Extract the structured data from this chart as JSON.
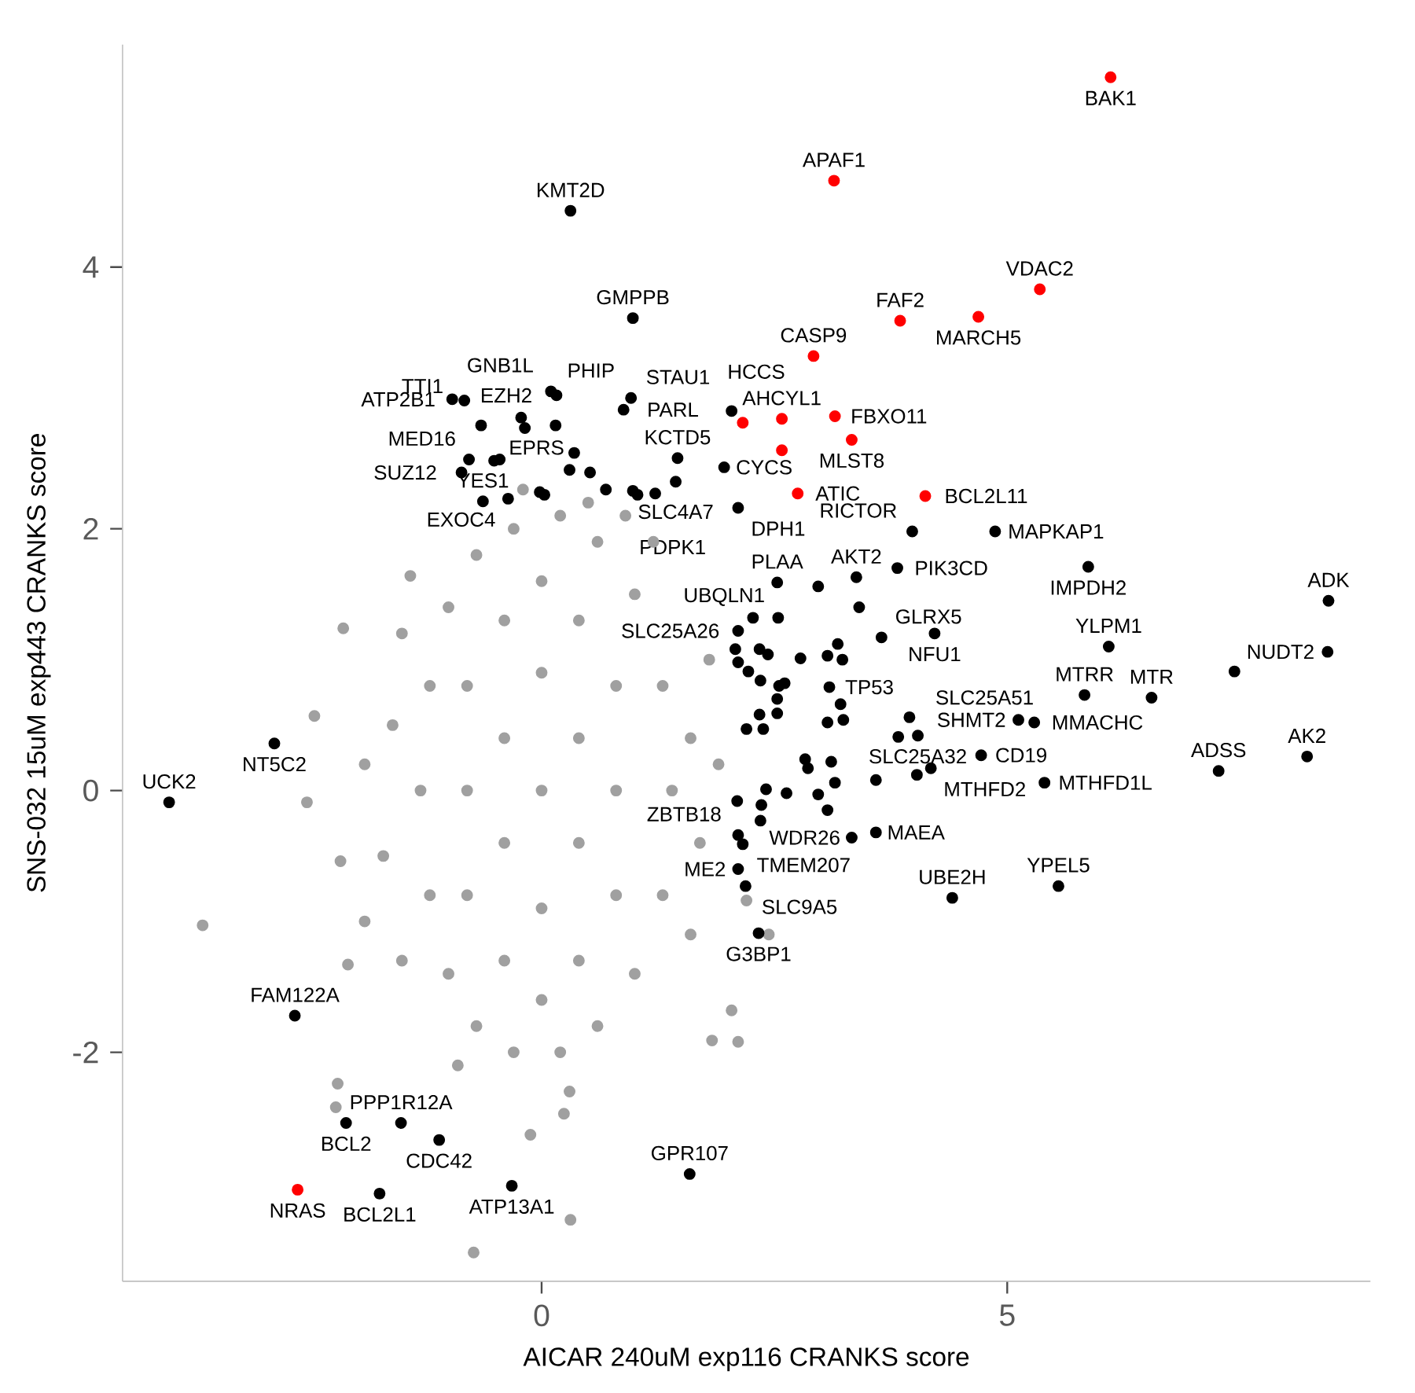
{
  "chart_data": {
    "type": "scatter",
    "xlabel": "AICAR 240uM exp116 CRANKS score",
    "ylabel": "SNS-032 15uM exp443 CRANKS score",
    "xlim": [
      -4.5,
      8.9
    ],
    "ylim": [
      -3.75,
      5.7
    ],
    "xticks": [
      0,
      5
    ],
    "yticks": [
      -2,
      0,
      2,
      4
    ],
    "grid": false,
    "series": [
      {
        "color": "#a0a0a0",
        "x": [
          -1.3,
          -1.2,
          -1.2,
          -1.0,
          -1.0,
          -0.7,
          -0.7,
          -0.3,
          -0.3,
          0.2,
          0.2,
          0.6,
          0.6,
          1.0,
          1.0,
          1.3,
          1.3,
          1.4,
          -0.8,
          -0.8,
          -0.8,
          -0.4,
          -0.4,
          -0.4,
          -0.4,
          0,
          0,
          0,
          0,
          0,
          0.4,
          0.4,
          0.4,
          0.4,
          0.8,
          0.8,
          0.8,
          -1.6,
          -1.7,
          -1.5,
          -1.5,
          1.6,
          1.7,
          1.8,
          1.6,
          0.9,
          -0.9,
          0.3,
          -0.2,
          1.2,
          1.9,
          -1.9,
          -1.9,
          -3.64,
          -0.73,
          0.31,
          -2.13,
          -2.44,
          2.04,
          2.11,
          1.83,
          0.24,
          -0.12,
          -2.21,
          -2.19,
          -2.16,
          -2.52,
          -2.08,
          0.5,
          -1.41,
          2.44,
          2.2
        ],
        "values": [
          0,
          0.8,
          -0.8,
          1.4,
          -1.4,
          1.8,
          -1.8,
          2.0,
          -2.0,
          2.1,
          -2.0,
          1.9,
          -1.8,
          1.5,
          -1.4,
          0.8,
          -0.8,
          0,
          0,
          0.8,
          -0.8,
          1.3,
          -1.3,
          0.4,
          -0.4,
          0,
          0.9,
          -0.9,
          1.6,
          -1.6,
          0.4,
          -0.4,
          1.3,
          -1.3,
          0,
          0.8,
          -0.8,
          0.5,
          -0.5,
          1.2,
          -1.3,
          0.4,
          -0.4,
          1.0,
          -1.1,
          2.1,
          -2.1,
          -2.3,
          2.3,
          1.9,
          0.2,
          -1.0,
          0.2,
          -1.03,
          -3.53,
          -3.28,
          1.24,
          0.57,
          -1.68,
          -1.92,
          -1.91,
          -2.47,
          -2.63,
          -2.42,
          -2.24,
          -0.54,
          -0.09,
          -1.33,
          2.2,
          1.64,
          -1.1,
          -0.84
        ]
      },
      {
        "color": "#000000",
        "x": [
          0.31,
          0.98,
          0.1,
          0.16,
          0.96,
          0.88,
          -0.96,
          -0.83,
          -0.22,
          -0.18,
          -0.65,
          0.15,
          0.35,
          2.04,
          1.46,
          1.44,
          -0.78,
          -0.51,
          -0.45,
          -0.86,
          0.3,
          0.52,
          0.03,
          -0.02,
          0.69,
          0.98,
          1.22,
          1.03,
          1.96,
          -0.63,
          -0.36,
          2.11,
          3.98,
          4.87,
          5.87,
          3.38,
          3.82,
          2.53,
          2.97,
          3.41,
          2.54,
          2.27,
          2.11,
          8.45,
          8.44,
          4.22,
          3.65,
          6.09,
          7.44,
          5.83,
          6.55,
          3.09,
          5.12,
          5.29,
          8.22,
          7.27,
          4.72,
          5.4,
          4.04,
          3.83,
          3.95,
          4.18,
          4.03,
          3.59,
          3.59,
          3.33,
          4.41,
          5.55,
          -2.87,
          -4.0,
          2.11,
          2.16,
          2.11,
          2.19,
          2.33,
          1.59,
          -2.65,
          -2.1,
          -1.51,
          -1.1,
          -0.32,
          -1.74,
          2.34,
          2.43,
          2.22,
          2.35,
          2.55,
          2.61,
          2.78,
          3.07,
          3.18,
          3.23,
          3.21,
          3.24,
          3.07,
          2.53,
          2.34,
          2.2,
          2.38,
          2.53,
          2.83,
          2.86,
          3.11,
          3.15,
          2.63,
          2.41,
          2.36,
          2.97,
          3.07,
          2.35,
          2.1,
          2.08,
          2.11
        ],
        "values": [
          4.43,
          3.61,
          3.05,
          3.02,
          3.0,
          2.91,
          2.99,
          2.98,
          2.85,
          2.77,
          2.79,
          2.79,
          2.58,
          2.9,
          2.54,
          2.36,
          2.53,
          2.52,
          2.53,
          2.43,
          2.45,
          2.43,
          2.26,
          2.28,
          2.3,
          2.29,
          2.27,
          2.26,
          2.47,
          2.21,
          2.23,
          2.16,
          1.98,
          1.98,
          1.71,
          1.63,
          1.7,
          1.59,
          1.56,
          1.4,
          1.32,
          1.32,
          1.22,
          1.45,
          1.06,
          1.2,
          1.17,
          1.1,
          0.91,
          0.73,
          0.71,
          0.79,
          0.54,
          0.52,
          0.26,
          0.15,
          0.27,
          0.06,
          0.42,
          0.41,
          0.56,
          0.17,
          0.12,
          0.08,
          -0.32,
          -0.36,
          -0.82,
          -0.73,
          0.36,
          -0.09,
          -0.34,
          -0.41,
          -0.6,
          -0.73,
          -1.09,
          -2.93,
          -1.72,
          -2.54,
          -2.54,
          -2.67,
          -3.02,
          -3.08,
          1.08,
          1.04,
          0.91,
          0.84,
          0.8,
          0.82,
          1.01,
          1.03,
          1.12,
          1.0,
          0.66,
          0.54,
          0.52,
          0.7,
          0.58,
          0.47,
          0.47,
          0.59,
          0.24,
          0.17,
          0.22,
          0.06,
          -0.02,
          0.01,
          -0.11,
          -0.03,
          -0.15,
          -0.23,
          -0.08,
          1.08,
          0.98
        ]
      },
      {
        "color": "#ff0000",
        "x": [
          6.11,
          3.14,
          5.35,
          3.85,
          4.69,
          2.92,
          2.58,
          3.15,
          2.16,
          2.58,
          3.33,
          4.12,
          2.75,
          -2.62
        ],
        "values": [
          5.45,
          4.66,
          3.83,
          3.59,
          3.62,
          3.32,
          2.84,
          2.86,
          2.81,
          2.6,
          2.68,
          2.25,
          2.27,
          -3.05
        ]
      }
    ],
    "annotations": [
      {
        "text": "BAK1",
        "x": 6.11,
        "y": 5.45
      },
      {
        "text": "APAF1",
        "x": 3.14,
        "y": 4.66
      },
      {
        "text": "VDAC2",
        "x": 5.35,
        "y": 3.83
      },
      {
        "text": "FAF2",
        "x": 3.85,
        "y": 3.59
      },
      {
        "text": "MARCH5",
        "x": 4.69,
        "y": 3.62
      },
      {
        "text": "CASP9",
        "x": 2.92,
        "y": 3.32
      },
      {
        "text": "AHCYL1",
        "x": 2.58,
        "y": 2.84
      },
      {
        "text": "FBXO11",
        "x": 3.15,
        "y": 2.86
      },
      {
        "text": "MLST8",
        "x": 3.33,
        "y": 2.68
      },
      {
        "text": "BCL2L11",
        "x": 4.12,
        "y": 2.25
      },
      {
        "text": "ATIC",
        "x": 2.75,
        "y": 2.27
      },
      {
        "text": "NRAS",
        "x": -2.62,
        "y": -3.05
      },
      {
        "text": "KMT2D",
        "x": 0.31,
        "y": 4.43
      },
      {
        "text": "GMPPB",
        "x": 0.98,
        "y": 3.61
      },
      {
        "text": "PHIP",
        "x": 0.1,
        "y": 3.05
      },
      {
        "text": "GNB1L",
        "x": 0.16,
        "y": 3.02
      },
      {
        "text": "STAU1",
        "x": 0.96,
        "y": 3.0
      },
      {
        "text": "HCCS",
        "x": 2.04,
        "y": 2.9
      },
      {
        "text": "PARL",
        "x": 0.88,
        "y": 2.91
      },
      {
        "text": "ATP2B1",
        "x": -0.96,
        "y": 2.99
      },
      {
        "text": "EPRS",
        "x": -0.22,
        "y": 2.85
      },
      {
        "text": "TTI1",
        "x": -0.65,
        "y": 2.79
      },
      {
        "text": "EZH2",
        "x": 0.15,
        "y": 2.79
      },
      {
        "text": "KCTD5",
        "x": 1.46,
        "y": 2.54
      },
      {
        "text": "MED16",
        "x": -0.78,
        "y": 2.53
      },
      {
        "text": "SUZ12",
        "x": -0.86,
        "y": 2.43
      },
      {
        "text": "CYCS",
        "x": 1.96,
        "y": 2.47
      },
      {
        "text": "SLC4A7",
        "x": 1.44,
        "y": 2.36
      },
      {
        "text": "YES1",
        "x": -0.63,
        "y": 2.21
      },
      {
        "text": "EXOC4",
        "x": -0.36,
        "y": 2.23
      },
      {
        "text": "DPH1",
        "x": 2.11,
        "y": 2.16
      },
      {
        "text": "PDPK1",
        "x": 2.11,
        "y": 2.16
      },
      {
        "text": "RICTOR",
        "x": 3.98,
        "y": 1.98
      },
      {
        "text": "MAPKAP1",
        "x": 4.87,
        "y": 1.98
      },
      {
        "text": "IMPDH2",
        "x": 5.87,
        "y": 1.71
      },
      {
        "text": "AKT2",
        "x": 3.38,
        "y": 1.63
      },
      {
        "text": "PIK3CD",
        "x": 3.82,
        "y": 1.7
      },
      {
        "text": "PLAA",
        "x": 2.53,
        "y": 1.59
      },
      {
        "text": "UBQLN1",
        "x": 2.54,
        "y": 1.32
      },
      {
        "text": "SLC25A26",
        "x": 2.11,
        "y": 1.22
      },
      {
        "text": "ADK",
        "x": 8.45,
        "y": 1.45
      },
      {
        "text": "NUDT2",
        "x": 8.44,
        "y": 1.06
      },
      {
        "text": "NFU1",
        "x": 4.22,
        "y": 1.2
      },
      {
        "text": "GLRX5",
        "x": 3.65,
        "y": 1.17
      },
      {
        "text": "YLPM1",
        "x": 6.09,
        "y": 1.1
      },
      {
        "text": "MTRR",
        "x": 5.83,
        "y": 0.73
      },
      {
        "text": "MTR",
        "x": 6.55,
        "y": 0.71
      },
      {
        "text": "TP53",
        "x": 3.09,
        "y": 0.79
      },
      {
        "text": "SHMT2",
        "x": 5.12,
        "y": 0.54
      },
      {
        "text": "MMACHC",
        "x": 5.29,
        "y": 0.52
      },
      {
        "text": "SLC25A32",
        "x": 4.04,
        "y": 0.42
      },
      {
        "text": "SLC25A51",
        "x": 3.83,
        "y": 0.41
      },
      {
        "text": "AK2",
        "x": 8.22,
        "y": 0.26
      },
      {
        "text": "ADSS",
        "x": 7.27,
        "y": 0.15
      },
      {
        "text": "CD19",
        "x": 4.72,
        "y": 0.27
      },
      {
        "text": "MTHFD1L",
        "x": 5.4,
        "y": 0.06
      },
      {
        "text": "MTHFD2",
        "x": 4.18,
        "y": 0.17
      },
      {
        "text": "MAEA",
        "x": 3.59,
        "y": -0.32
      },
      {
        "text": "WDR26",
        "x": 3.33,
        "y": -0.36
      },
      {
        "text": "UBE2H",
        "x": 4.41,
        "y": -0.82
      },
      {
        "text": "YPEL5",
        "x": 5.55,
        "y": -0.73
      },
      {
        "text": "NT5C2",
        "x": -2.87,
        "y": 0.36
      },
      {
        "text": "UCK2",
        "x": -4.0,
        "y": -0.09
      },
      {
        "text": "ZBTB18",
        "x": 2.11,
        "y": -0.34
      },
      {
        "text": "TMEM207",
        "x": 2.16,
        "y": -0.41
      },
      {
        "text": "ME2",
        "x": 2.11,
        "y": -0.6
      },
      {
        "text": "SLC9A5",
        "x": 2.19,
        "y": -0.73
      },
      {
        "text": "G3BP1",
        "x": 2.33,
        "y": -1.09
      },
      {
        "text": "GPR107",
        "x": 1.59,
        "y": -2.93
      },
      {
        "text": "FAM122A",
        "x": -2.65,
        "y": -1.72
      },
      {
        "text": "BCL2",
        "x": -2.1,
        "y": -2.54
      },
      {
        "text": "PPP1R12A",
        "x": -1.51,
        "y": -2.54
      },
      {
        "text": "CDC42",
        "x": -1.1,
        "y": -2.67
      },
      {
        "text": "ATP13A1",
        "x": -0.32,
        "y": -3.02
      },
      {
        "text": "BCL2L1",
        "x": -1.74,
        "y": -3.08
      }
    ]
  }
}
